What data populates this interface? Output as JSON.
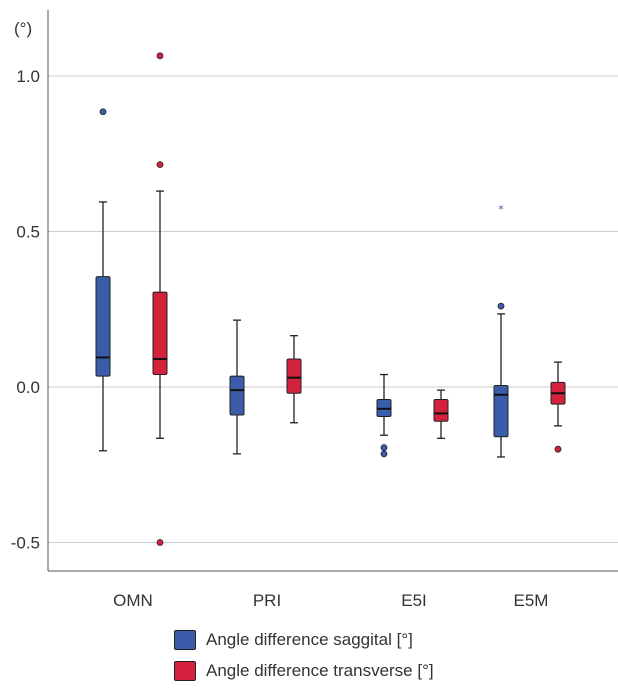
{
  "chart_data": {
    "type": "box",
    "unit_label": "(°)",
    "xlabel": "",
    "ylabel": "",
    "ylim": [
      -0.6,
      1.2
    ],
    "yticks": [
      {
        "value": 1.0,
        "label": "1.0"
      },
      {
        "value": 0.5,
        "label": "0.5"
      },
      {
        "value": 0.0,
        "label": "0.0"
      },
      {
        "value": -0.5,
        "label": "-0.5"
      }
    ],
    "grid": "horizontal",
    "legend_position": "bottom",
    "categories": [
      "OMN",
      "PRI",
      "E5I",
      "E5M"
    ],
    "series": [
      {
        "name": "Angle difference saggital [°]",
        "color": "#3b5ca8",
        "boxes": [
          {
            "category": "OMN",
            "whisker_low": -0.205,
            "q1": 0.035,
            "median": 0.095,
            "q3": 0.355,
            "whisker_high": 0.595,
            "outliers": [
              0.885
            ],
            "extremes": []
          },
          {
            "category": "PRI",
            "whisker_low": -0.215,
            "q1": -0.09,
            "median": -0.01,
            "q3": 0.035,
            "whisker_high": 0.215,
            "outliers": [],
            "extremes": []
          },
          {
            "category": "E5I",
            "whisker_low": -0.155,
            "q1": -0.095,
            "median": -0.07,
            "q3": -0.04,
            "whisker_high": 0.04,
            "outliers": [
              -0.195,
              -0.215
            ],
            "extremes": []
          },
          {
            "category": "E5M",
            "whisker_low": -0.225,
            "q1": -0.16,
            "median": -0.025,
            "q3": 0.005,
            "whisker_high": 0.235,
            "outliers": [
              0.26
            ],
            "extremes": [
              0.575
            ]
          }
        ]
      },
      {
        "name": "Angle difference transverse [°]",
        "color": "#d4213d",
        "boxes": [
          {
            "category": "OMN",
            "whisker_low": -0.165,
            "q1": 0.04,
            "median": 0.09,
            "q3": 0.305,
            "whisker_high": 0.63,
            "outliers": [
              1.065,
              0.715,
              -0.5
            ],
            "extremes": []
          },
          {
            "category": "PRI",
            "whisker_low": -0.115,
            "q1": -0.02,
            "median": 0.03,
            "q3": 0.09,
            "whisker_high": 0.165,
            "outliers": [],
            "extremes": []
          },
          {
            "category": "E5I",
            "whisker_low": -0.165,
            "q1": -0.11,
            "median": -0.085,
            "q3": -0.04,
            "whisker_high": -0.01,
            "outliers": [],
            "extremes": []
          },
          {
            "category": "E5M",
            "whisker_low": -0.125,
            "q1": -0.055,
            "median": -0.02,
            "q3": 0.015,
            "whisker_high": 0.08,
            "outliers": [
              -0.2
            ],
            "extremes": []
          }
        ]
      }
    ]
  }
}
